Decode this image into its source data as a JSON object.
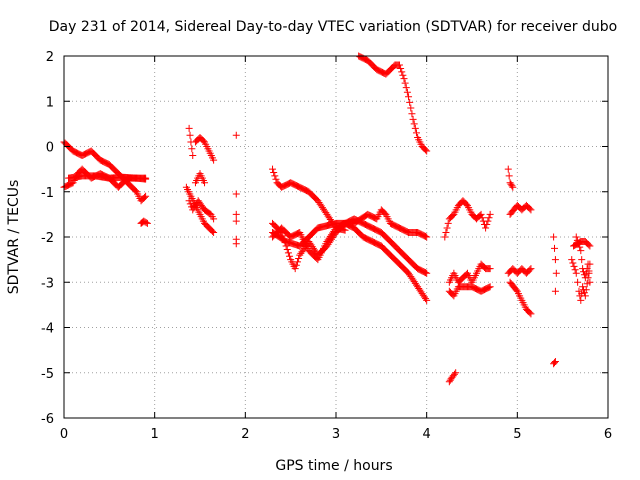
{
  "colors": {
    "series": "#ff0000",
    "grid": "#a0a0a0",
    "axis": "#000000"
  },
  "chart_data": {
    "type": "scatter",
    "title": "Day 231 of 2014, Sidereal Day-to-day VTEC variation (SDTVAR) for receiver dubo",
    "xlabel": "GPS time / hours",
    "ylabel": "SDTVAR / TECUs",
    "xlim": [
      0,
      6
    ],
    "ylim": [
      -6,
      2
    ],
    "xticks": [
      0,
      1,
      2,
      3,
      4,
      5,
      6
    ],
    "yticks": [
      -6,
      -5,
      -4,
      -3,
      -2,
      -1,
      0,
      1,
      2
    ],
    "xtick_labels": [
      "0",
      "1",
      "2",
      "3",
      "4",
      "5",
      "6"
    ],
    "ytick_labels": [
      "-6",
      "-5",
      "-4",
      "-3",
      "-2",
      "-1",
      "0",
      "1",
      "2"
    ],
    "grid": true,
    "marker": "+",
    "series": [
      {
        "name": "dubo",
        "tracks": [
          [
            [
              0.0,
              0.1
            ],
            [
              0.1,
              -0.1
            ],
            [
              0.2,
              -0.2
            ],
            [
              0.3,
              -0.1
            ],
            [
              0.4,
              -0.3
            ],
            [
              0.5,
              -0.4
            ],
            [
              0.6,
              -0.6
            ],
            [
              0.7,
              -0.8
            ],
            [
              0.8,
              -1.0
            ],
            [
              0.85,
              -1.2
            ],
            [
              0.9,
              -1.1
            ]
          ],
          [
            [
              0.0,
              -0.9
            ],
            [
              0.1,
              -0.8
            ],
            [
              0.15,
              -0.6
            ],
            [
              0.2,
              -0.5
            ],
            [
              0.3,
              -0.7
            ],
            [
              0.4,
              -0.6
            ],
            [
              0.5,
              -0.7
            ],
            [
              0.6,
              -0.9
            ],
            [
              0.7,
              -0.7
            ],
            [
              0.8,
              -0.7
            ],
            [
              0.9,
              -0.7
            ]
          ],
          [
            [
              0.05,
              -0.7
            ],
            [
              0.2,
              -0.65
            ],
            [
              0.35,
              -0.65
            ],
            [
              0.5,
              -0.7
            ],
            [
              0.65,
              -0.68
            ],
            [
              0.8,
              -0.7
            ],
            [
              0.9,
              -0.72
            ]
          ],
          [
            [
              0.85,
              -1.7
            ],
            [
              0.88,
              -1.65
            ],
            [
              0.92,
              -1.7
            ]
          ],
          [
            [
              1.38,
              0.4
            ],
            [
              1.4,
              0.1
            ],
            [
              1.42,
              -0.2
            ]
          ],
          [
            [
              1.45,
              0.1
            ],
            [
              1.5,
              0.2
            ],
            [
              1.55,
              0.1
            ],
            [
              1.6,
              -0.1
            ],
            [
              1.65,
              -0.3
            ]
          ],
          [
            [
              1.35,
              -0.9
            ],
            [
              1.4,
              -1.1
            ],
            [
              1.45,
              -1.3
            ],
            [
              1.5,
              -1.5
            ],
            [
              1.55,
              -1.7
            ],
            [
              1.6,
              -1.8
            ],
            [
              1.65,
              -1.9
            ]
          ],
          [
            [
              1.38,
              -1.2
            ],
            [
              1.42,
              -1.4
            ],
            [
              1.48,
              -1.2
            ],
            [
              1.55,
              -1.4
            ],
            [
              1.62,
              -1.5
            ],
            [
              1.65,
              -1.6
            ]
          ],
          [
            [
              1.45,
              -0.8
            ],
            [
              1.5,
              -0.6
            ],
            [
              1.55,
              -0.8
            ]
          ],
          [
            [
              1.9,
              0.25
            ],
            [
              1.9,
              -1.05
            ],
            [
              1.9,
              -1.5
            ],
            [
              1.9,
              -1.65
            ],
            [
              1.9,
              -2.05
            ],
            [
              1.9,
              -2.15
            ]
          ],
          [
            [
              2.3,
              -0.5
            ],
            [
              2.35,
              -0.8
            ],
            [
              2.4,
              -0.9
            ],
            [
              2.5,
              -0.8
            ],
            [
              2.6,
              -0.9
            ],
            [
              2.7,
              -1.0
            ],
            [
              2.8,
              -1.2
            ],
            [
              2.9,
              -1.5
            ],
            [
              3.0,
              -1.8
            ],
            [
              3.1,
              -1.85
            ]
          ],
          [
            [
              2.3,
              -1.7
            ],
            [
              2.4,
              -1.9
            ],
            [
              2.5,
              -2.5
            ],
            [
              2.55,
              -2.7
            ],
            [
              2.6,
              -2.4
            ],
            [
              2.7,
              -2.1
            ],
            [
              2.8,
              -2.4
            ],
            [
              2.9,
              -2.2
            ],
            [
              3.0,
              -1.9
            ],
            [
              3.1,
              -1.7
            ],
            [
              3.2,
              -1.8
            ],
            [
              3.3,
              -2.0
            ],
            [
              3.4,
              -2.1
            ],
            [
              3.5,
              -2.2
            ],
            [
              3.6,
              -2.4
            ],
            [
              3.7,
              -2.6
            ],
            [
              3.8,
              -2.8
            ],
            [
              3.9,
              -3.1
            ],
            [
              4.0,
              -3.4
            ]
          ],
          [
            [
              2.3,
              -2.0
            ],
            [
              2.4,
              -1.8
            ],
            [
              2.5,
              -2.0
            ],
            [
              2.6,
              -1.9
            ],
            [
              2.7,
              -2.3
            ],
            [
              2.8,
              -2.5
            ],
            [
              2.9,
              -2.1
            ],
            [
              3.0,
              -1.8
            ],
            [
              3.1,
              -1.7
            ],
            [
              3.2,
              -1.6
            ],
            [
              3.3,
              -1.7
            ],
            [
              3.4,
              -1.8
            ],
            [
              3.5,
              -1.9
            ],
            [
              3.6,
              -2.1
            ],
            [
              3.7,
              -2.3
            ],
            [
              3.8,
              -2.5
            ],
            [
              3.9,
              -2.7
            ],
            [
              4.0,
              -2.8
            ]
          ],
          [
            [
              2.3,
              -1.9
            ],
            [
              2.45,
              -2.1
            ],
            [
              2.6,
              -2.2
            ],
            [
              2.8,
              -1.8
            ],
            [
              3.0,
              -1.7
            ],
            [
              3.2,
              -1.7
            ],
            [
              3.35,
              -1.5
            ],
            [
              3.45,
              -1.6
            ],
            [
              3.5,
              -1.4
            ],
            [
              3.55,
              -1.5
            ],
            [
              3.6,
              -1.7
            ],
            [
              3.7,
              -1.8
            ],
            [
              3.8,
              -1.9
            ],
            [
              3.9,
              -1.9
            ],
            [
              4.0,
              -2.0
            ]
          ],
          [
            [
              3.25,
              2.0
            ],
            [
              3.35,
              1.9
            ],
            [
              3.45,
              1.7
            ],
            [
              3.55,
              1.6
            ],
            [
              3.6,
              1.7
            ],
            [
              3.65,
              1.8
            ],
            [
              3.7,
              1.8
            ],
            [
              3.75,
              1.5
            ],
            [
              3.8,
              1.1
            ],
            [
              3.85,
              0.6
            ],
            [
              3.9,
              0.2
            ],
            [
              3.95,
              0.0
            ],
            [
              4.0,
              -0.1
            ]
          ],
          [
            [
              4.2,
              -2.0
            ],
            [
              4.25,
              -1.6
            ],
            [
              4.3,
              -1.5
            ],
            [
              4.35,
              -1.3
            ],
            [
              4.4,
              -1.2
            ],
            [
              4.45,
              -1.3
            ],
            [
              4.5,
              -1.5
            ],
            [
              4.55,
              -1.6
            ],
            [
              4.6,
              -1.5
            ],
            [
              4.65,
              -1.8
            ],
            [
              4.7,
              -1.5
            ]
          ],
          [
            [
              4.25,
              -3.0
            ],
            [
              4.3,
              -2.8
            ],
            [
              4.35,
              -3.0
            ],
            [
              4.45,
              -2.8
            ],
            [
              4.5,
              -3.0
            ],
            [
              4.55,
              -2.8
            ],
            [
              4.6,
              -2.6
            ],
            [
              4.65,
              -2.7
            ],
            [
              4.7,
              -2.7
            ]
          ],
          [
            [
              4.25,
              -3.2
            ],
            [
              4.3,
              -3.3
            ],
            [
              4.35,
              -3.1
            ],
            [
              4.4,
              -3.1
            ],
            [
              4.5,
              -3.1
            ],
            [
              4.6,
              -3.2
            ],
            [
              4.7,
              -3.1
            ]
          ],
          [
            [
              4.25,
              -5.2
            ],
            [
              4.28,
              -5.1
            ],
            [
              4.32,
              -5.0
            ]
          ],
          [
            [
              4.9,
              -0.5
            ],
            [
              4.92,
              -0.8
            ],
            [
              4.95,
              -0.9
            ]
          ],
          [
            [
              4.92,
              -1.5
            ],
            [
              5.0,
              -1.3
            ],
            [
              5.05,
              -1.4
            ],
            [
              5.1,
              -1.3
            ],
            [
              5.15,
              -1.4
            ]
          ],
          [
            [
              4.9,
              -2.8
            ],
            [
              4.95,
              -2.7
            ],
            [
              5.0,
              -2.8
            ],
            [
              5.05,
              -2.7
            ],
            [
              5.1,
              -2.8
            ],
            [
              5.15,
              -2.7
            ]
          ],
          [
            [
              4.92,
              -3.0
            ],
            [
              5.0,
              -3.2
            ],
            [
              5.05,
              -3.4
            ],
            [
              5.1,
              -3.6
            ],
            [
              5.15,
              -3.7
            ]
          ],
          [
            [
              5.4,
              -2.0
            ],
            [
              5.42,
              -2.5
            ],
            [
              5.43,
              -2.8
            ],
            [
              5.42,
              -3.2
            ]
          ],
          [
            [
              5.4,
              -4.8
            ],
            [
              5.42,
              -4.75
            ]
          ],
          [
            [
              5.65,
              -2.0
            ],
            [
              5.7,
              -2.3
            ],
            [
              5.72,
              -2.7
            ],
            [
              5.75,
              -2.9
            ],
            [
              5.78,
              -2.6
            ],
            [
              5.8,
              -3.0
            ]
          ],
          [
            [
              5.6,
              -2.5
            ],
            [
              5.65,
              -2.8
            ],
            [
              5.68,
              -3.2
            ],
            [
              5.7,
              -3.4
            ],
            [
              5.72,
              -3.1
            ],
            [
              5.75,
              -3.3
            ],
            [
              5.78,
              -2.9
            ],
            [
              5.8,
              -2.6
            ]
          ],
          [
            [
              5.62,
              -2.2
            ],
            [
              5.7,
              -2.1
            ],
            [
              5.75,
              -2.1
            ],
            [
              5.8,
              -2.2
            ]
          ]
        ]
      }
    ]
  }
}
